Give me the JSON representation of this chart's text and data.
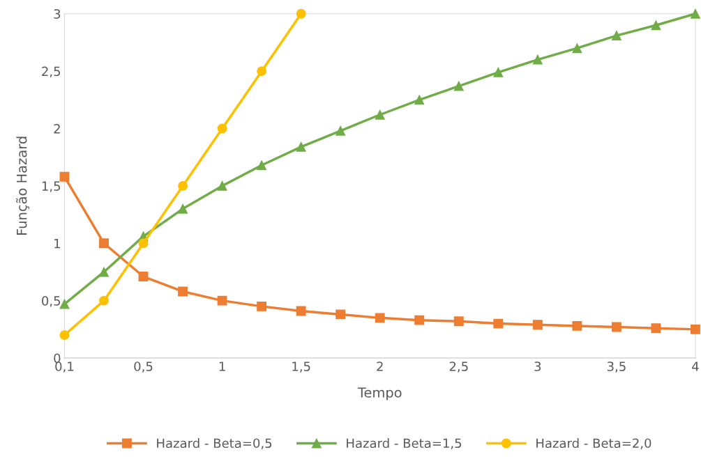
{
  "chart_data": {
    "type": "line",
    "xlabel": "Tempo",
    "ylabel": "Função Hazard",
    "categories": [
      "0,1",
      null,
      "0,5",
      null,
      "1",
      null,
      "1,5",
      null,
      "2",
      null,
      "2,5",
      null,
      "3",
      null,
      "3,5",
      null,
      "4"
    ],
    "series": [
      {
        "name": "Hazard - Beta=0,5",
        "color": "#ed7d31",
        "marker": "square",
        "values": [
          1.58,
          1.0,
          0.71,
          0.58,
          0.5,
          0.45,
          0.41,
          0.38,
          0.35,
          0.33,
          0.32,
          0.3,
          0.29,
          0.28,
          0.27,
          0.26,
          0.25
        ]
      },
      {
        "name": "Hazard - Beta=1,5",
        "color": "#70ad47",
        "marker": "triangle",
        "values": [
          0.47,
          0.75,
          1.06,
          1.3,
          1.5,
          1.68,
          1.84,
          1.98,
          2.12,
          2.25,
          2.37,
          2.49,
          2.6,
          2.7,
          2.81,
          2.9,
          3.0
        ]
      },
      {
        "name": "Hazard - Beta=2,0",
        "color": "#ffc000",
        "marker": "circle",
        "values": [
          0.2,
          0.5,
          1.0,
          1.5,
          2.0,
          2.5,
          3.0,
          null,
          null,
          null,
          null,
          null,
          null,
          null,
          null,
          null,
          null
        ]
      }
    ],
    "ylim": [
      0,
      3
    ],
    "yticks": [
      0,
      {
        "value": 0.5,
        "label": "0,5"
      },
      1,
      {
        "value": 1.5,
        "label": "1,5"
      },
      2,
      {
        "value": 2.5,
        "label": "2,5"
      },
      3
    ],
    "grid": false,
    "legend": "bottom",
    "line_style": "solid"
  }
}
